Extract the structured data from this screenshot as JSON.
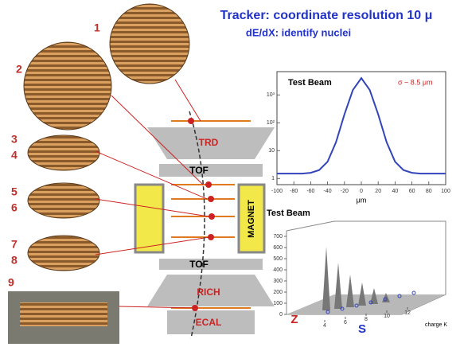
{
  "header": {
    "title": "Tracker: coordinate resolution 10 μ",
    "subtitle": "dE/dX: identify nuclei"
  },
  "layers": [
    "1",
    "2",
    "3",
    "4",
    "5",
    "6",
    "7",
    "8",
    "9"
  ],
  "detector": {
    "trd": "TRD",
    "tof_upper": "TOF",
    "magnet": "MAGNET",
    "tof_lower": "TOF",
    "rich": "RICH",
    "ecal": "ECAL"
  },
  "charts": [
    {
      "type": "line",
      "title": "Test Beam",
      "annotation": "σ ~ 8.5 μm",
      "xlabel": "μm",
      "log_y": true,
      "x": [
        -100,
        -90,
        -80,
        -70,
        -60,
        -50,
        -40,
        -30,
        -20,
        -10,
        0,
        10,
        20,
        30,
        40,
        50,
        60,
        70,
        80,
        90,
        100
      ],
      "series": [
        {
          "color": "#3344bb",
          "values": [
            1.5,
            1.5,
            1.5,
            1.5,
            1.6,
            2,
            4,
            20,
            200,
            1500,
            4000,
            1500,
            200,
            20,
            4,
            2,
            1.6,
            1.5,
            1.5,
            1.5,
            1.5
          ]
        }
      ],
      "xlim": [
        -100,
        100
      ],
      "xticks": [
        -100,
        -80,
        -60,
        -40,
        -20,
        0,
        20,
        40,
        60,
        80,
        100
      ],
      "ylim": [
        0.6,
        6000
      ],
      "yticks": [
        1,
        10,
        {
          "value": 100,
          "label": "10²"
        },
        {
          "value": 1000,
          "label": "10³"
        }
      ]
    },
    {
      "type": "surface",
      "title": "Test Beam",
      "xlabel": "charge K",
      "x_letter": "S",
      "y_letter": "Z",
      "xlim": [
        3,
        13
      ],
      "xticks": [
        4,
        6,
        8,
        10,
        12
      ],
      "ylim": [
        0,
        750
      ],
      "yticks": [
        0,
        100,
        200,
        300,
        400,
        500,
        600,
        700
      ]
    }
  ]
}
